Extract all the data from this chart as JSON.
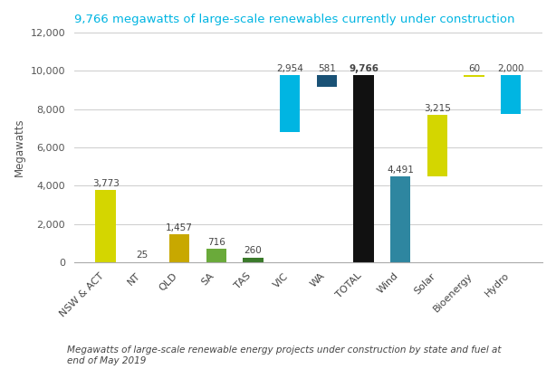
{
  "categories": [
    "NSW & ACT",
    "NT",
    "QLD",
    "SA",
    "TAS",
    "VIC",
    "WA",
    "TOTAL",
    "Wind",
    "Solar",
    "Bioenergy",
    "Hydro"
  ],
  "values": [
    3773,
    25,
    1457,
    716,
    260,
    2954,
    581,
    9766,
    4491,
    3215,
    60,
    2000
  ],
  "bar_bottoms": [
    0,
    0,
    0,
    0,
    0,
    6812,
    9185,
    0,
    0,
    4491,
    9706,
    7766
  ],
  "bar_colors": [
    "#d4d600",
    "#d4d600",
    "#c8a800",
    "#6aaa3a",
    "#3a7a2a",
    "#00b5e2",
    "#1a5276",
    "#111111",
    "#2e86a0",
    "#d4d600",
    "#d4d600",
    "#00b5e2"
  ],
  "labels": [
    "3,773",
    "25",
    "1,457",
    "716",
    "260",
    "2,954",
    "581",
    "9,766",
    "4,491",
    "3,215",
    "60",
    "2,000"
  ],
  "title": "9,766 megawatts of large-scale renewables currently under construction",
  "title_color": "#00b5e2",
  "ylabel": "Megawatts",
  "ylim": [
    0,
    12000
  ],
  "yticks": [
    0,
    2000,
    4000,
    6000,
    8000,
    10000,
    12000
  ],
  "ytick_labels": [
    "0",
    "2,000",
    "4,000",
    "6,000",
    "8,000",
    "10,000",
    "12,000"
  ],
  "footnote": "Megawatts of large-scale renewable energy projects under construction by state and fuel at\nend of May 2019",
  "background_color": "#ffffff"
}
